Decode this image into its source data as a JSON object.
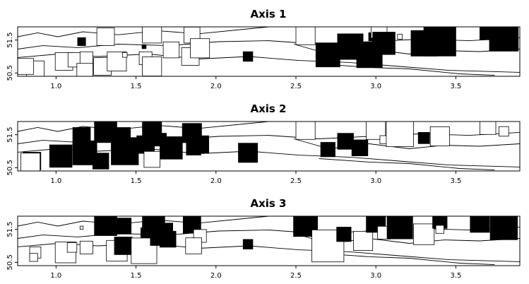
{
  "chart_data": [
    {
      "type": "scatter",
      "title": "Axis 1",
      "x_ticks": [
        "1.0",
        "1.5",
        "2.0",
        "2.5",
        "3.0",
        "3.5"
      ],
      "y_ticks": [
        "50.5",
        "51.5"
      ],
      "xlim": [
        0.76,
        3.9
      ],
      "ylim": [
        50.4,
        51.9
      ],
      "grid": false,
      "squares": [
        {
          "x": 0.87,
          "y": 50.6,
          "size": 0.11,
          "fill": "white"
        },
        {
          "x": 0.81,
          "y": 50.7,
          "size": 0.1,
          "fill": "white"
        },
        {
          "x": 1.05,
          "y": 50.85,
          "size": 0.11,
          "fill": "white"
        },
        {
          "x": 1.12,
          "y": 50.9,
          "size": 0.09,
          "fill": "white"
        },
        {
          "x": 1.19,
          "y": 50.95,
          "size": 0.08,
          "fill": "white"
        },
        {
          "x": 1.18,
          "y": 50.55,
          "size": 0.1,
          "fill": "white"
        },
        {
          "x": 1.29,
          "y": 50.7,
          "size": 0.11,
          "fill": "white"
        },
        {
          "x": 1.38,
          "y": 50.85,
          "size": 0.12,
          "fill": "white"
        },
        {
          "x": 1.43,
          "y": 51.05,
          "size": 0.03,
          "fill": "white"
        },
        {
          "x": 1.56,
          "y": 50.95,
          "size": 0.08,
          "fill": "white"
        },
        {
          "x": 1.6,
          "y": 51.7,
          "size": 0.12,
          "fill": "white"
        },
        {
          "x": 1.6,
          "y": 50.7,
          "size": 0.12,
          "fill": "white"
        },
        {
          "x": 1.72,
          "y": 51.2,
          "size": 0.1,
          "fill": "white"
        },
        {
          "x": 1.84,
          "y": 51.0,
          "size": 0.11,
          "fill": "white"
        },
        {
          "x": 1.85,
          "y": 51.65,
          "size": 0.1,
          "fill": "white"
        },
        {
          "x": 1.9,
          "y": 51.25,
          "size": 0.12,
          "fill": "white"
        },
        {
          "x": 1.31,
          "y": 51.6,
          "size": 0.11,
          "fill": "white"
        },
        {
          "x": 1.16,
          "y": 51.45,
          "size": 0.05,
          "fill": "black"
        },
        {
          "x": 1.55,
          "y": 51.3,
          "size": 0.025,
          "fill": "black"
        },
        {
          "x": 2.2,
          "y": 51.0,
          "size": 0.06,
          "fill": "black"
        },
        {
          "x": 2.56,
          "y": 51.65,
          "size": 0.12,
          "fill": "white"
        },
        {
          "x": 2.7,
          "y": 51.05,
          "size": 0.15,
          "fill": "black"
        },
        {
          "x": 2.84,
          "y": 51.3,
          "size": 0.16,
          "fill": "black"
        },
        {
          "x": 2.96,
          "y": 51.05,
          "size": 0.16,
          "fill": "black"
        },
        {
          "x": 2.98,
          "y": 51.6,
          "size": 0.05,
          "fill": "black"
        },
        {
          "x": 3.02,
          "y": 51.8,
          "size": 0.1,
          "fill": "white"
        },
        {
          "x": 3.05,
          "y": 51.4,
          "size": 0.14,
          "fill": "black"
        },
        {
          "x": 3.15,
          "y": 51.6,
          "size": 0.03,
          "fill": "white"
        },
        {
          "x": 3.3,
          "y": 51.4,
          "size": 0.16,
          "fill": "black"
        },
        {
          "x": 3.4,
          "y": 51.5,
          "size": 0.2,
          "fill": "black"
        },
        {
          "x": 3.7,
          "y": 51.75,
          "size": 0.1,
          "fill": "black"
        },
        {
          "x": 3.8,
          "y": 51.6,
          "size": 0.18,
          "fill": "black"
        }
      ]
    },
    {
      "type": "scatter",
      "title": "Axis 2",
      "x_ticks": [
        "1.0",
        "1.5",
        "2.0",
        "2.5",
        "3.0",
        "3.5"
      ],
      "y_ticks": [
        "50.5",
        "51.5"
      ],
      "xlim": [
        0.76,
        3.9
      ],
      "ylim": [
        50.4,
        51.9
      ],
      "grid": false,
      "squares": [
        {
          "x": 0.85,
          "y": 50.7,
          "size": 0.11,
          "fill": "black"
        },
        {
          "x": 0.84,
          "y": 50.65,
          "size": 0.12,
          "fill": "white"
        },
        {
          "x": 1.03,
          "y": 50.85,
          "size": 0.14,
          "fill": "black"
        },
        {
          "x": 1.18,
          "y": 50.95,
          "size": 0.15,
          "fill": "black"
        },
        {
          "x": 1.16,
          "y": 51.45,
          "size": 0.11,
          "fill": "black"
        },
        {
          "x": 1.28,
          "y": 50.7,
          "size": 0.1,
          "fill": "black"
        },
        {
          "x": 1.31,
          "y": 51.6,
          "size": 0.14,
          "fill": "black"
        },
        {
          "x": 1.42,
          "y": 51.5,
          "size": 0.09,
          "fill": "black"
        },
        {
          "x": 1.43,
          "y": 51.0,
          "size": 0.17,
          "fill": "black"
        },
        {
          "x": 1.56,
          "y": 51.2,
          "size": 0.11,
          "fill": "black"
        },
        {
          "x": 1.6,
          "y": 51.65,
          "size": 0.12,
          "fill": "black"
        },
        {
          "x": 1.65,
          "y": 51.35,
          "size": 0.08,
          "fill": "black"
        },
        {
          "x": 1.72,
          "y": 51.1,
          "size": 0.14,
          "fill": "black"
        },
        {
          "x": 1.6,
          "y": 50.75,
          "size": 0.1,
          "fill": "white"
        },
        {
          "x": 1.85,
          "y": 51.55,
          "size": 0.12,
          "fill": "black"
        },
        {
          "x": 1.9,
          "y": 51.2,
          "size": 0.11,
          "fill": "black"
        },
        {
          "x": 1.86,
          "y": 51.1,
          "size": 0.09,
          "fill": "black"
        },
        {
          "x": 2.2,
          "y": 50.95,
          "size": 0.12,
          "fill": "black"
        },
        {
          "x": 2.56,
          "y": 51.65,
          "size": 0.12,
          "fill": "white"
        },
        {
          "x": 2.7,
          "y": 51.05,
          "size": 0.09,
          "fill": "black"
        },
        {
          "x": 2.81,
          "y": 51.3,
          "size": 0.1,
          "fill": "black"
        },
        {
          "x": 2.9,
          "y": 51.1,
          "size": 0.1,
          "fill": "black"
        },
        {
          "x": 3.0,
          "y": 51.65,
          "size": 0.12,
          "fill": "white"
        },
        {
          "x": 3.05,
          "y": 51.35,
          "size": 0.05,
          "fill": "white"
        },
        {
          "x": 3.15,
          "y": 51.55,
          "size": 0.17,
          "fill": "white"
        },
        {
          "x": 3.3,
          "y": 51.4,
          "size": 0.07,
          "fill": "black"
        },
        {
          "x": 3.4,
          "y": 51.45,
          "size": 0.12,
          "fill": "white"
        },
        {
          "x": 3.7,
          "y": 51.75,
          "size": 0.1,
          "fill": "white"
        },
        {
          "x": 3.8,
          "y": 51.6,
          "size": 0.06,
          "fill": "white"
        }
      ]
    },
    {
      "type": "scatter",
      "title": "Axis 3",
      "x_ticks": [
        "1.0",
        "1.5",
        "2.0",
        "2.5",
        "3.0",
        "3.5"
      ],
      "y_ticks": [
        "50.5",
        "51.5"
      ],
      "xlim": [
        0.76,
        3.9
      ],
      "ylim": [
        50.4,
        51.9
      ],
      "grid": false,
      "squares": [
        {
          "x": 0.87,
          "y": 50.8,
          "size": 0.07,
          "fill": "white"
        },
        {
          "x": 0.86,
          "y": 50.65,
          "size": 0.05,
          "fill": "white"
        },
        {
          "x": 1.06,
          "y": 50.8,
          "size": 0.13,
          "fill": "white"
        },
        {
          "x": 1.1,
          "y": 50.95,
          "size": 0.06,
          "fill": "white"
        },
        {
          "x": 1.16,
          "y": 51.55,
          "size": 0.02,
          "fill": "white"
        },
        {
          "x": 1.19,
          "y": 50.95,
          "size": 0.08,
          "fill": "white"
        },
        {
          "x": 1.31,
          "y": 51.65,
          "size": 0.14,
          "fill": "black"
        },
        {
          "x": 1.38,
          "y": 50.85,
          "size": 0.13,
          "fill": "white"
        },
        {
          "x": 1.42,
          "y": 51.6,
          "size": 0.1,
          "fill": "black"
        },
        {
          "x": 1.42,
          "y": 51.0,
          "size": 0.11,
          "fill": "black"
        },
        {
          "x": 1.55,
          "y": 50.85,
          "size": 0.16,
          "fill": "white"
        },
        {
          "x": 1.56,
          "y": 51.4,
          "size": 0.06,
          "fill": "black"
        },
        {
          "x": 1.61,
          "y": 51.7,
          "size": 0.14,
          "fill": "black"
        },
        {
          "x": 1.66,
          "y": 51.35,
          "size": 0.14,
          "fill": "black"
        },
        {
          "x": 1.7,
          "y": 51.2,
          "size": 0.1,
          "fill": "black"
        },
        {
          "x": 1.85,
          "y": 51.65,
          "size": 0.11,
          "fill": "black"
        },
        {
          "x": 1.9,
          "y": 51.3,
          "size": 0.08,
          "fill": "white"
        },
        {
          "x": 1.86,
          "y": 51.0,
          "size": 0.1,
          "fill": "white"
        },
        {
          "x": 2.2,
          "y": 51.05,
          "size": 0.06,
          "fill": "black"
        },
        {
          "x": 2.56,
          "y": 51.65,
          "size": 0.15,
          "fill": "black"
        },
        {
          "x": 2.7,
          "y": 51.0,
          "size": 0.2,
          "fill": "white"
        },
        {
          "x": 2.8,
          "y": 51.35,
          "size": 0.09,
          "fill": "black"
        },
        {
          "x": 2.92,
          "y": 51.15,
          "size": 0.12,
          "fill": "white"
        },
        {
          "x": 3.0,
          "y": 51.7,
          "size": 0.12,
          "fill": "black"
        },
        {
          "x": 3.05,
          "y": 51.4,
          "size": 0.08,
          "fill": "white"
        },
        {
          "x": 3.15,
          "y": 51.6,
          "size": 0.16,
          "fill": "black"
        },
        {
          "x": 3.3,
          "y": 51.35,
          "size": 0.13,
          "fill": "white"
        },
        {
          "x": 3.4,
          "y": 51.75,
          "size": 0.09,
          "fill": "black"
        },
        {
          "x": 3.4,
          "y": 51.5,
          "size": 0.05,
          "fill": "white"
        },
        {
          "x": 3.65,
          "y": 51.7,
          "size": 0.12,
          "fill": "black"
        },
        {
          "x": 3.8,
          "y": 51.6,
          "size": 0.17,
          "fill": "black"
        }
      ]
    }
  ]
}
